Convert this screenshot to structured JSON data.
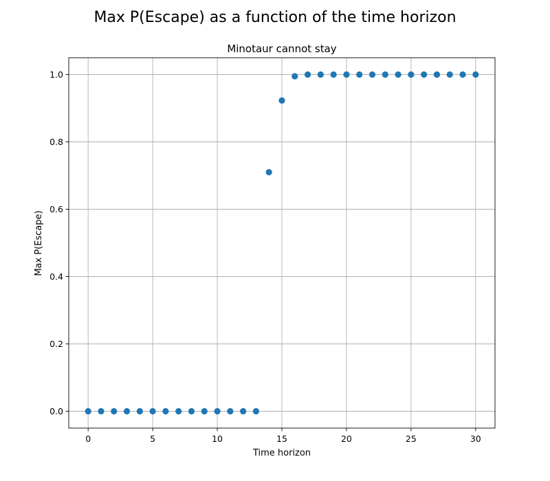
{
  "figure": {
    "suptitle": "Max P(Escape) as a function of the time horizon"
  },
  "chart_data": {
    "type": "scatter",
    "title": "Minotaur cannot stay",
    "xlabel": "Time horizon",
    "ylabel": "Max P(Escape)",
    "xlim": [
      -1.5,
      31.5
    ],
    "ylim": [
      -0.05,
      1.05
    ],
    "x_ticks": [
      0,
      5,
      10,
      15,
      20,
      25,
      30
    ],
    "x_tick_labels": [
      "0",
      "5",
      "10",
      "15",
      "20",
      "25",
      "30"
    ],
    "y_ticks": [
      0.0,
      0.2,
      0.4,
      0.6,
      0.8,
      1.0
    ],
    "y_tick_labels": [
      "0.0",
      "0.2",
      "0.4",
      "0.6",
      "0.8",
      "1.0"
    ],
    "grid": true,
    "marker_color": "#1f77b4",
    "series": [
      {
        "x": [
          0,
          1,
          2,
          3,
          4,
          5,
          6,
          7,
          8,
          9,
          10,
          11,
          12,
          13,
          14,
          15,
          16,
          17,
          18,
          19,
          20,
          21,
          22,
          23,
          24,
          25,
          26,
          27,
          28,
          29,
          30
        ],
        "y": [
          0.0,
          0.0,
          0.0,
          0.0,
          0.0,
          0.0,
          0.0,
          0.0,
          0.0,
          0.0,
          0.0,
          0.0,
          0.0,
          0.0,
          0.71,
          0.923,
          0.995,
          1.0,
          1.0,
          1.0,
          1.0,
          1.0,
          1.0,
          1.0,
          1.0,
          1.0,
          1.0,
          1.0,
          1.0,
          1.0,
          1.0
        ]
      }
    ]
  }
}
